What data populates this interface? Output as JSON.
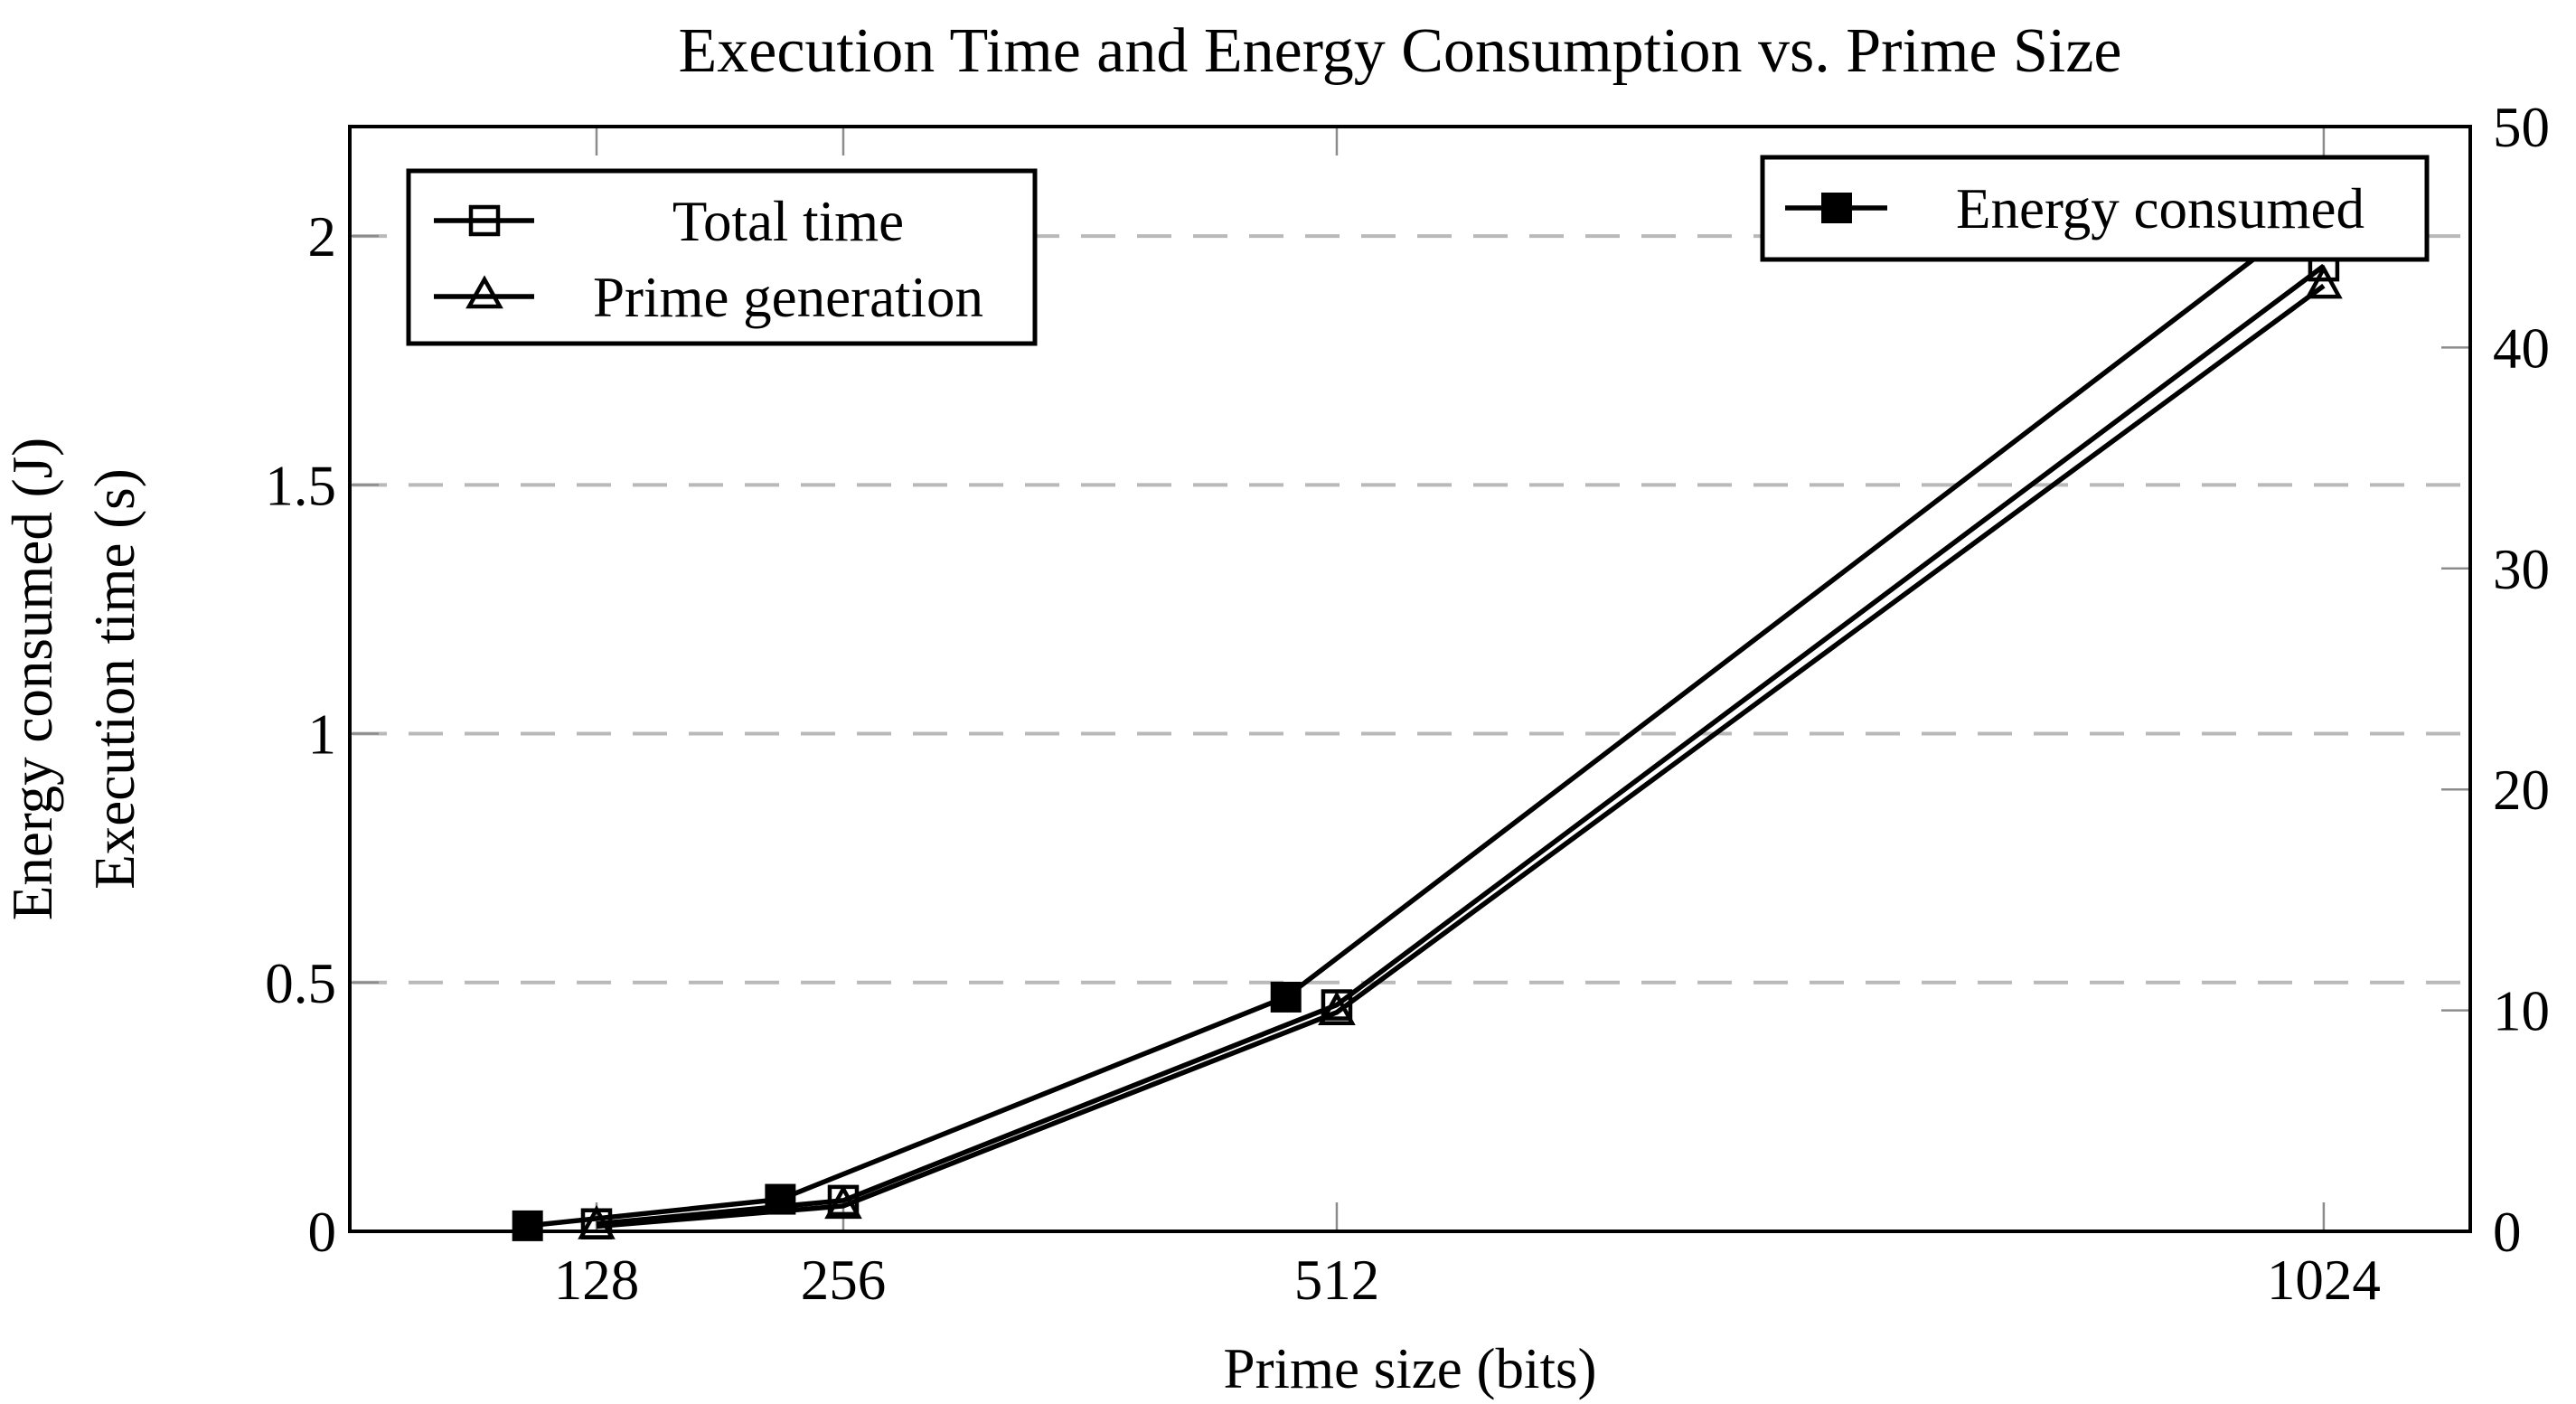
{
  "chart_data": {
    "type": "line",
    "title": "Execution Time and Energy Consumption vs. Prime Size",
    "xlabel": "Prime size (bits)",
    "ylabel_left_outer": "Energy consumed (J)",
    "ylabel_left_inner": "Execution time (s)",
    "x": [
      128,
      256,
      512,
      1024
    ],
    "xtick_labels": [
      "128",
      "256",
      "512",
      "1024"
    ],
    "x_range": [
      0,
      1100
    ],
    "left_axis": {
      "range": [
        0,
        2.22
      ],
      "ticks": [
        0,
        0.5,
        1,
        1.5,
        2
      ],
      "tick_labels": [
        "0",
        "0.5",
        "1",
        "1.5",
        "2"
      ],
      "gridlines": [
        0.5,
        1,
        1.5,
        2
      ]
    },
    "right_axis": {
      "range": [
        0,
        50
      ],
      "ticks": [
        0,
        10,
        20,
        30,
        40,
        50
      ],
      "tick_labels": [
        "0",
        "10",
        "20",
        "30",
        "40",
        "50"
      ]
    },
    "series": [
      {
        "name": "Total time",
        "axis": "left",
        "marker": "open-square",
        "x": [
          128,
          256,
          512,
          1024
        ],
        "values": [
          0.015,
          0.062,
          0.455,
          1.94
        ]
      },
      {
        "name": "Prime generation",
        "axis": "left",
        "marker": "open-triangle",
        "x": [
          128,
          256,
          512,
          1024
        ],
        "values": [
          0.01,
          0.051,
          0.44,
          1.9
        ]
      },
      {
        "name": "Energy consumed",
        "axis": "right",
        "marker": "filled-square",
        "x": [
          128,
          256,
          512,
          1024
        ],
        "values": [
          0.25,
          1.45,
          10.6,
          45.5
        ]
      }
    ],
    "legend": {
      "left_box_entries": [
        "Total time",
        "Prime generation"
      ],
      "right_box_entries": [
        "Energy consumed"
      ],
      "left_box_position": "north west",
      "right_box_position": "north east"
    },
    "grid": "horizontal-dashed",
    "colors": {
      "series": "#000000",
      "grid": "#b9b9b9",
      "tick": "#8c8c8c",
      "axis": "#000000",
      "background": "#ffffff"
    }
  }
}
